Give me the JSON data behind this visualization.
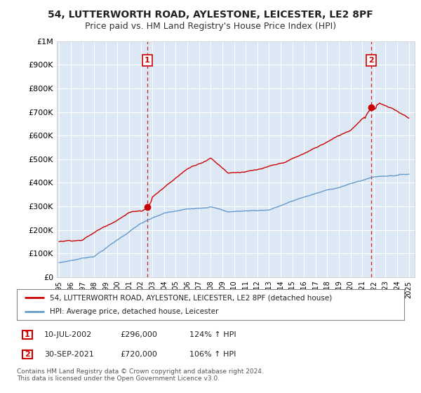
{
  "title": "54, LUTTERWORTH ROAD, AYLESTONE, LEICESTER, LE2 8PF",
  "subtitle": "Price paid vs. HM Land Registry's House Price Index (HPI)",
  "title_fontsize": 10,
  "subtitle_fontsize": 9,
  "hpi_label": "HPI: Average price, detached house, Leicester",
  "property_label": "54, LUTTERWORTH ROAD, AYLESTONE, LEICESTER, LE2 8PF (detached house)",
  "point1_date": "10-JUL-2002",
  "point1_price": 296000,
  "point1_hpi_pct": "124% ↑ HPI",
  "point2_date": "30-SEP-2021",
  "point2_price": 720000,
  "point2_hpi_pct": "106% ↑ HPI",
  "ylim": [
    0,
    1000000
  ],
  "yticks": [
    0,
    100000,
    200000,
    300000,
    400000,
    500000,
    600000,
    700000,
    800000,
    900000,
    1000000
  ],
  "ytick_labels": [
    "£0",
    "£100K",
    "£200K",
    "£300K",
    "£400K",
    "£500K",
    "£600K",
    "£700K",
    "£800K",
    "£900K",
    "£1M"
  ],
  "copyright_text": "Contains HM Land Registry data © Crown copyright and database right 2024.\nThis data is licensed under the Open Government Licence v3.0.",
  "property_line_color": "#cc0000",
  "hpi_line_color": "#6699cc",
  "grid_color": "#cccccc",
  "chart_bg_color": "#dce9f5",
  "bg_color": "#ffffff",
  "badge_color": "#cc0000",
  "xstart_year": 1995,
  "xend_year": 2025,
  "sale1_year_float": 2002.542,
  "sale2_year_float": 2021.75
}
